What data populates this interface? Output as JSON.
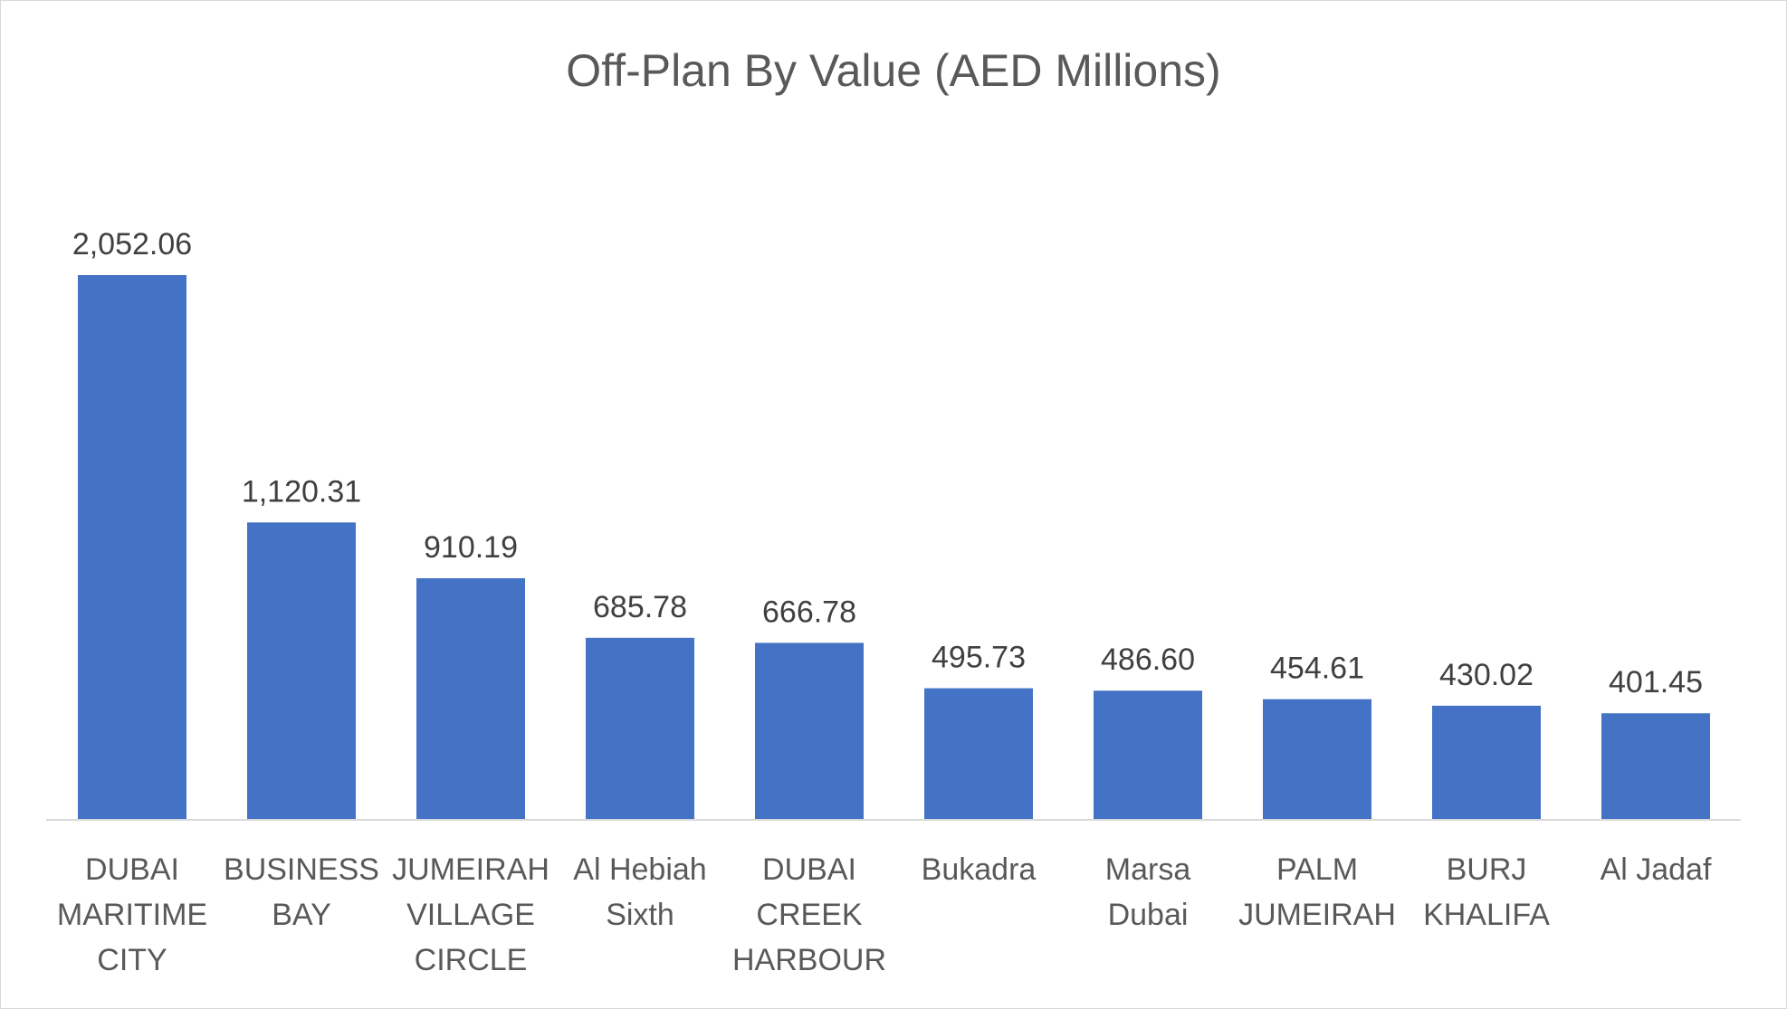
{
  "chart_data": {
    "type": "bar",
    "title": "Off-Plan By Value (AED Millions)",
    "xlabel": "",
    "ylabel": "",
    "categories": [
      "DUBAI MARITIME CITY",
      "BUSINESS BAY",
      "JUMEIRAH VILLAGE CIRCLE",
      "Al Hebiah Sixth",
      "DUBAI CREEK HARBOUR",
      "Bukadra",
      "Marsa Dubai",
      "PALM JUMEIRAH",
      "BURJ KHALIFA",
      "Al Jadaf"
    ],
    "category_lines": [
      [
        "DUBAI",
        "MARITIME",
        "CITY"
      ],
      [
        "BUSINESS",
        "BAY"
      ],
      [
        "JUMEIRAH",
        "VILLAGE",
        "CIRCLE"
      ],
      [
        "Al Hebiah",
        "Sixth"
      ],
      [
        "DUBAI",
        "CREEK",
        "HARBOUR"
      ],
      [
        "Bukadra"
      ],
      [
        "Marsa",
        "Dubai"
      ],
      [
        "PALM",
        "JUMEIRAH"
      ],
      [
        "BURJ",
        "KHALIFA"
      ],
      [
        "Al Jadaf"
      ]
    ],
    "values": [
      2052.06,
      1120.31,
      910.19,
      685.78,
      666.78,
      495.73,
      486.6,
      454.61,
      430.02,
      401.45
    ],
    "data_labels": [
      "2,052.06",
      "1,120.31",
      "910.19",
      "685.78",
      "666.78",
      "495.73",
      "486.60",
      "454.61",
      "430.02",
      "401.45"
    ],
    "ylim": [
      0,
      2052.06
    ],
    "grid": false,
    "legend": "none",
    "colors": {
      "bar": "#4472C4",
      "axis": "#d9d9d9",
      "title": "#595959",
      "label": "#404040",
      "tick": "#595959"
    }
  }
}
